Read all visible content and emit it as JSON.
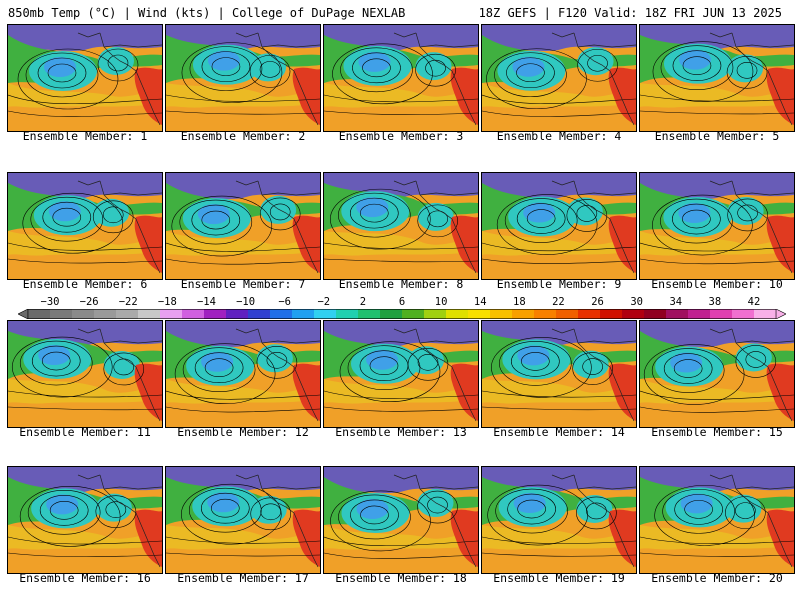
{
  "header": {
    "left_title": "850mb Temp (°C) | Wind (kts) | College of DuPage NEXLAB",
    "right_title": "18Z GEFS | F120 Valid: 18Z FRI JUN 13 2025"
  },
  "colorbar": {
    "tick_labels": [
      "−30",
      "−26",
      "−22",
      "−18",
      "−14",
      "−10",
      "−6",
      "−2",
      "2",
      "6",
      "10",
      "14",
      "18",
      "22",
      "26",
      "30",
      "34",
      "38",
      "42"
    ],
    "colors": [
      "#6a6a6a",
      "#7a7a7a",
      "#8a8a8a",
      "#9a9a9a",
      "#aaaaaa",
      "#c8c8c8",
      "#e8a0f0",
      "#d060e0",
      "#a020c0",
      "#6020c0",
      "#3040d0",
      "#2070e8",
      "#20a0f0",
      "#30d0f0",
      "#20d0b0",
      "#20c070",
      "#20a040",
      "#50b020",
      "#a0d010",
      "#e0e000",
      "#f8e000",
      "#f8c000",
      "#f8a000",
      "#f88000",
      "#f06000",
      "#e83000",
      "#d01000",
      "#b00010",
      "#900020",
      "#a01060",
      "#c02090",
      "#e040b0",
      "#f070d0",
      "#f8b0e8"
    ]
  },
  "map_colors": {
    "warm_sea": "#f0a028",
    "hot_land": "#e03a20",
    "cool_low": "#30c8c0",
    "cold_core": "#40a0e8",
    "green": "#40b040",
    "yellow": "#e8d020",
    "polar": "#5050d0"
  },
  "members": [
    {
      "label": "Ensemble Member: 1"
    },
    {
      "label": "Ensemble Member: 2"
    },
    {
      "label": "Ensemble Member: 3"
    },
    {
      "label": "Ensemble Member: 4"
    },
    {
      "label": "Ensemble Member: 5"
    },
    {
      "label": "Ensemble Member: 6"
    },
    {
      "label": "Ensemble Member: 7"
    },
    {
      "label": "Ensemble Member: 8"
    },
    {
      "label": "Ensemble Member: 9"
    },
    {
      "label": "Ensemble Member: 10"
    },
    {
      "label": "Ensemble Member: 11"
    },
    {
      "label": "Ensemble Member: 12"
    },
    {
      "label": "Ensemble Member: 13"
    },
    {
      "label": "Ensemble Member: 14"
    },
    {
      "label": "Ensemble Member: 15"
    },
    {
      "label": "Ensemble Member: 16"
    },
    {
      "label": "Ensemble Member: 17"
    },
    {
      "label": "Ensemble Member: 18"
    },
    {
      "label": "Ensemble Member: 19"
    },
    {
      "label": "Ensemble Member: 20"
    }
  ]
}
